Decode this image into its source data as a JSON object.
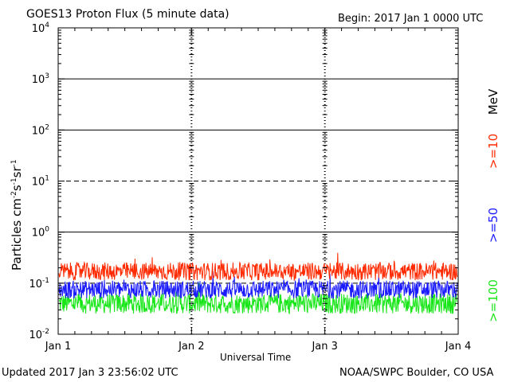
{
  "header": {
    "title": "GOES13 Proton Flux (5 minute data)",
    "begin": "Begin: 2017 Jan 1 0000 UTC"
  },
  "footer": {
    "updated": "Updated 2017 Jan  3 23:56:02 UTC",
    "credit": "NOAA/SWPC Boulder, CO USA"
  },
  "chart_data": {
    "type": "line",
    "title": "GOES13 Proton Flux (5 minute data)",
    "xlabel": "Universal Time",
    "ylabel": "Particles cm-2s-1sr-1",
    "yscale": "log",
    "ylim": [
      0.01,
      10000
    ],
    "xlim": [
      0,
      3
    ],
    "x_ticks": [
      "Jan 1",
      "Jan 2",
      "Jan 3",
      "Jan 4"
    ],
    "y_ticks": [
      {
        "base": "10",
        "exp": "4"
      },
      {
        "base": "10",
        "exp": "3"
      },
      {
        "base": "10",
        "exp": "2"
      },
      {
        "base": "10",
        "exp": "1"
      },
      {
        "base": "10",
        "exp": "0"
      },
      {
        "base": "10",
        "exp": "-1"
      },
      {
        "base": "10",
        "exp": "-2"
      }
    ],
    "grid": true,
    "legend_unit": "MeV",
    "series": [
      {
        "name": ">=10",
        "color": "#ff2a00",
        "level": 0.17,
        "spread": 0.35
      },
      {
        "name": ">=50",
        "color": "#1a1aff",
        "level": 0.075,
        "spread": 0.35
      },
      {
        "name": ">=100",
        "color": "#19e619",
        "level": 0.04,
        "spread": 0.4
      }
    ]
  }
}
